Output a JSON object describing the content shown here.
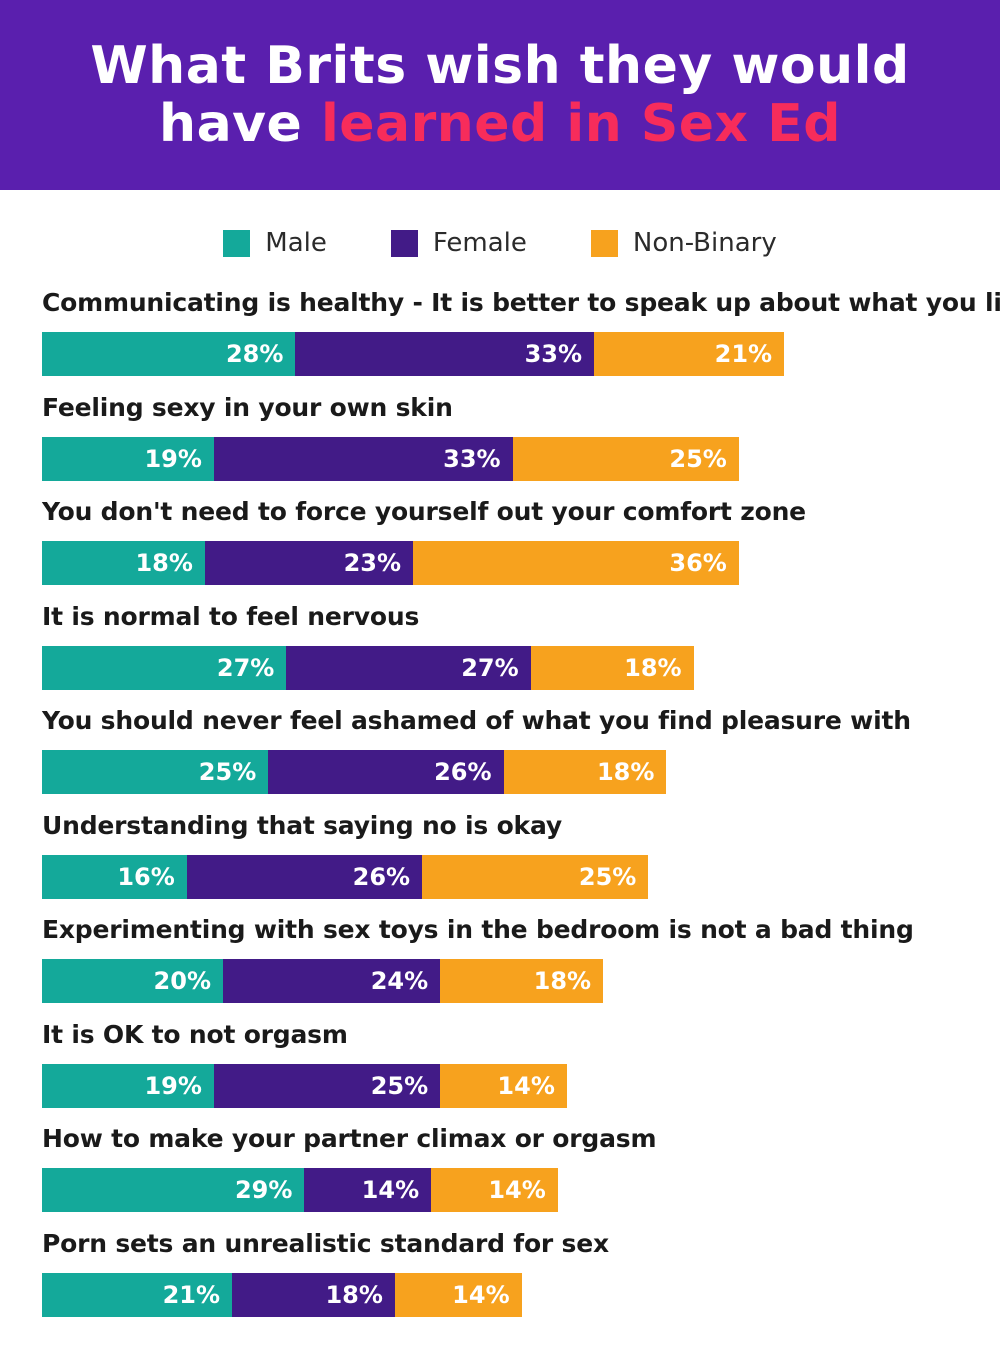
{
  "header": {
    "title_line1": "What Brits wish they would",
    "title_line2_plain": "have ",
    "title_line2_highlight": "learned in Sex Ed"
  },
  "colors": {
    "header_bg": "#5a1fae",
    "highlight": "#f72c5b",
    "male": "#14a99a",
    "female": "#421b87",
    "non_binary": "#f7a21e"
  },
  "chart_data": {
    "type": "bar",
    "orientation": "horizontal",
    "stacked": true,
    "title": "What Brits wish they would have learned in Sex Ed",
    "legend": {
      "placement": "top-center"
    },
    "grid": false,
    "categories": [
      "Communicating is healthy - It is better to speak up about what you like",
      "Feeling sexy in your own skin",
      "You don't need to force yourself out your comfort zone",
      "It is normal to feel nervous",
      "You should never feel ashamed of what you find pleasure with",
      "Understanding that saying no is okay",
      "Experimenting with sex toys in the bedroom is not a bad thing",
      "It is OK to not orgasm",
      "How to make your partner climax or orgasm",
      "Porn sets an unrealistic standard for sex"
    ],
    "series": [
      {
        "name": "Male",
        "values": [
          28,
          19,
          18,
          27,
          25,
          16,
          20,
          19,
          29,
          21
        ]
      },
      {
        "name": "Female",
        "values": [
          33,
          33,
          23,
          27,
          26,
          26,
          24,
          25,
          14,
          18
        ]
      },
      {
        "name": "Non-Binary",
        "values": [
          21,
          25,
          36,
          18,
          18,
          25,
          18,
          14,
          14,
          14
        ]
      }
    ],
    "value_suffix": "%"
  }
}
